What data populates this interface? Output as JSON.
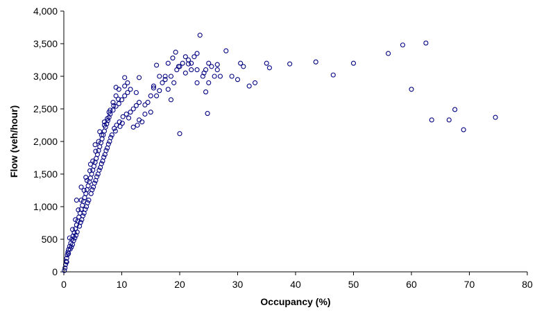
{
  "chart_data": {
    "type": "scatter",
    "title": "",
    "xlabel": "Occupancy (%)",
    "ylabel": "Flow (veh/hour)",
    "xlim": [
      0,
      80
    ],
    "ylim": [
      0,
      4000
    ],
    "x_ticks": [
      "0",
      "10",
      "20",
      "30",
      "40",
      "50",
      "60",
      "70",
      "80"
    ],
    "y_ticks": [
      "0",
      "500",
      "1,000",
      "1,500",
      "2,000",
      "2,500",
      "3,000",
      "3,500",
      "4,000"
    ],
    "grid": false,
    "legend": "none",
    "marker": {
      "shape": "open-circle",
      "color": "#000080"
    },
    "series": [
      {
        "points": [
          [
            0.1,
            20
          ],
          [
            0.2,
            60
          ],
          [
            0.3,
            110
          ],
          [
            0.4,
            160
          ],
          [
            0.5,
            210
          ],
          [
            0.6,
            260
          ],
          [
            0.7,
            300
          ],
          [
            0.8,
            340
          ],
          [
            1,
            390
          ],
          [
            1.2,
            440
          ],
          [
            1.4,
            500
          ],
          [
            1.6,
            550
          ],
          [
            1.8,
            600
          ],
          [
            2,
            660
          ],
          [
            2.2,
            720
          ],
          [
            2.4,
            780
          ],
          [
            2.6,
            840
          ],
          [
            2.8,
            900
          ],
          [
            3,
            960
          ],
          [
            3.2,
            1020
          ],
          [
            3.4,
            1080
          ],
          [
            3.6,
            1140
          ],
          [
            3.8,
            1200
          ],
          [
            4,
            1260
          ],
          [
            4.2,
            1320
          ],
          [
            4.4,
            1380
          ],
          [
            4.6,
            1440
          ],
          [
            4.8,
            1500
          ],
          [
            5,
            1560
          ],
          [
            5.2,
            1620
          ],
          [
            5.4,
            1680
          ],
          [
            5.6,
            1740
          ],
          [
            5.8,
            1800
          ],
          [
            6,
            1860
          ],
          [
            6.2,
            1920
          ],
          [
            6.4,
            1980
          ],
          [
            6.6,
            2040
          ],
          [
            6.8,
            2100
          ],
          [
            7,
            2160
          ],
          [
            7.2,
            2220
          ],
          [
            7.4,
            2270
          ],
          [
            7.6,
            2320
          ],
          [
            7.8,
            2370
          ],
          [
            8,
            2420
          ],
          [
            8.5,
            2480
          ],
          [
            9,
            2540
          ],
          [
            9.5,
            2580
          ],
          [
            10,
            2640
          ],
          [
            10.5,
            2700
          ],
          [
            11,
            2750
          ],
          [
            0.5,
            150
          ],
          [
            0.8,
            280
          ],
          [
            1.1,
            350
          ],
          [
            1.5,
            420
          ],
          [
            1.9,
            520
          ],
          [
            2.3,
            610
          ],
          [
            2.7,
            700
          ],
          [
            3.1,
            800
          ],
          [
            3.5,
            900
          ],
          [
            3.9,
            1000
          ],
          [
            4.3,
            1100
          ],
          [
            4.7,
            1200
          ],
          [
            5.1,
            1300
          ],
          [
            5.5,
            1400
          ],
          [
            5.9,
            1500
          ],
          [
            6.3,
            1600
          ],
          [
            6.7,
            1700
          ],
          [
            7.1,
            1800
          ],
          [
            7.5,
            1900
          ],
          [
            7.9,
            2000
          ],
          [
            8.3,
            2100
          ],
          [
            8.7,
            2200
          ],
          [
            9.1,
            2250
          ],
          [
            9.6,
            2300
          ],
          [
            10.2,
            2380
          ],
          [
            10.8,
            2420
          ],
          [
            11.5,
            2450
          ],
          [
            12,
            2500
          ],
          [
            12.5,
            2550
          ],
          [
            13,
            2600
          ],
          [
            1,
            520
          ],
          [
            1.5,
            650
          ],
          [
            2,
            800
          ],
          [
            2.5,
            950
          ],
          [
            3,
            1100
          ],
          [
            3.5,
            1250
          ],
          [
            4,
            1400
          ],
          [
            4.5,
            1550
          ],
          [
            5,
            1700
          ],
          [
            5.5,
            1850
          ],
          [
            6,
            2000
          ],
          [
            6.5,
            2100
          ],
          [
            7,
            2250
          ],
          [
            7.5,
            2350
          ],
          [
            8,
            2480
          ],
          [
            8.5,
            2600
          ],
          [
            9,
            2700
          ],
          [
            9.5,
            2800
          ],
          [
            10.5,
            2850
          ],
          [
            11,
            2900
          ],
          [
            2.2,
            1100
          ],
          [
            3,
            1300
          ],
          [
            3.8,
            1450
          ],
          [
            4.6,
            1650
          ],
          [
            5.4,
            1950
          ],
          [
            6.2,
            2150
          ],
          [
            7,
            2300
          ],
          [
            7.8,
            2450
          ],
          [
            8.6,
            2550
          ],
          [
            9.4,
            2650
          ],
          [
            1.3,
            380
          ],
          [
            1.7,
            480
          ],
          [
            2.1,
            560
          ],
          [
            2.9,
            760
          ],
          [
            3.3,
            860
          ],
          [
            3.7,
            960
          ],
          [
            4.1,
            1060
          ],
          [
            4.9,
            1260
          ],
          [
            5.3,
            1360
          ],
          [
            5.7,
            1460
          ],
          [
            6.1,
            1560
          ],
          [
            6.5,
            1660
          ],
          [
            6.9,
            1760
          ],
          [
            7.3,
            1860
          ],
          [
            7.7,
            1960
          ],
          [
            8.1,
            2060
          ],
          [
            8.9,
            2160
          ],
          [
            9.7,
            2230
          ],
          [
            10.1,
            2280
          ],
          [
            11.2,
            2360
          ],
          [
            12,
            2220
          ],
          [
            12.7,
            2250
          ],
          [
            13.5,
            2300
          ],
          [
            14,
            2420
          ],
          [
            14.5,
            2600
          ],
          [
            15,
            2700
          ],
          [
            15.5,
            2820
          ],
          [
            16,
            2700
          ],
          [
            16.5,
            2780
          ],
          [
            17,
            2900
          ],
          [
            17.5,
            2950
          ],
          [
            18,
            2800
          ],
          [
            18.5,
            3000
          ],
          [
            19,
            2900
          ],
          [
            19.5,
            3100
          ],
          [
            20,
            3150
          ],
          [
            20.5,
            3200
          ],
          [
            21,
            3050
          ],
          [
            21.5,
            3250
          ],
          [
            22,
            3100
          ],
          [
            22.5,
            3300
          ],
          [
            23,
            3350
          ],
          [
            23.5,
            3630
          ],
          [
            24,
            3000
          ],
          [
            24.5,
            3100
          ],
          [
            25,
            3200
          ],
          [
            25.5,
            3150
          ],
          [
            26,
            3000
          ],
          [
            26.5,
            3100
          ],
          [
            27,
            3000
          ],
          [
            28,
            3390
          ],
          [
            29,
            3000
          ],
          [
            30,
            2950
          ],
          [
            30.5,
            3200
          ],
          [
            31,
            3150
          ],
          [
            32,
            2850
          ],
          [
            33,
            2900
          ],
          [
            35,
            3200
          ],
          [
            35.5,
            3130
          ],
          [
            39,
            3190
          ],
          [
            43.5,
            3220
          ],
          [
            46.5,
            3020
          ],
          [
            50,
            3200
          ],
          [
            56,
            3350
          ],
          [
            58.5,
            3480
          ],
          [
            62.5,
            3510
          ],
          [
            60,
            2800
          ],
          [
            63.5,
            2330
          ],
          [
            66.5,
            2330
          ],
          [
            67.5,
            2490
          ],
          [
            69,
            2180
          ],
          [
            74.5,
            2370
          ],
          [
            20,
            2120
          ],
          [
            24.8,
            2430
          ],
          [
            16,
            3170
          ],
          [
            18,
            3200
          ],
          [
            19.3,
            3370
          ],
          [
            21.5,
            3190
          ],
          [
            23,
            3100
          ],
          [
            24.5,
            2760
          ],
          [
            18.5,
            2640
          ],
          [
            13,
            2980
          ],
          [
            10.5,
            2980
          ],
          [
            9,
            2830
          ],
          [
            11.5,
            2800
          ],
          [
            12.5,
            2750
          ],
          [
            15,
            2450
          ],
          [
            13,
            2330
          ],
          [
            14,
            2560
          ],
          [
            15.5,
            2850
          ],
          [
            16.5,
            3000
          ],
          [
            17.5,
            3000
          ],
          [
            18.8,
            3280
          ],
          [
            19.8,
            3150
          ],
          [
            21,
            3300
          ],
          [
            22,
            3200
          ],
          [
            23,
            2900
          ],
          [
            24.2,
            3050
          ],
          [
            25,
            2900
          ],
          [
            26.5,
            3180
          ]
        ]
      }
    ]
  }
}
